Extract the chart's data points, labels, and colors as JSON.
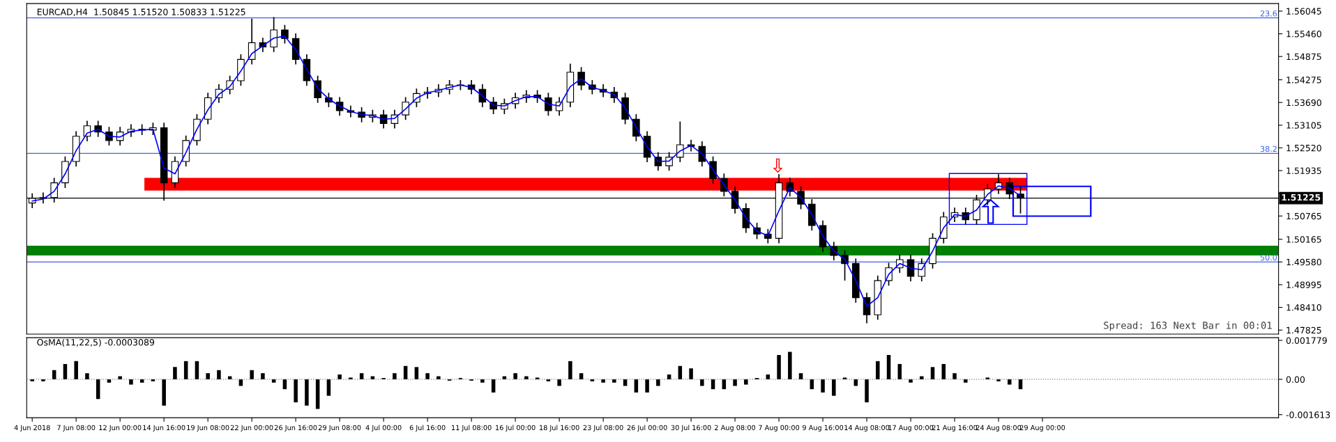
{
  "chart_data": [
    {
      "type": "candlestick",
      "title": "EURCAD,H4  1.50845 1.51520 1.50833 1.51225",
      "tick_labels": "y",
      "grid": false,
      "legend": false,
      "categories": [
        null,
        null,
        null,
        null,
        null,
        null,
        null,
        null,
        null,
        null,
        null,
        null,
        null,
        null,
        null,
        null,
        null,
        null,
        null,
        null,
        null,
        null,
        null,
        null,
        null,
        null,
        null,
        null,
        null,
        null,
        null,
        null,
        null,
        null,
        null,
        null,
        null,
        null,
        null,
        null,
        null,
        null,
        null,
        null,
        null,
        null,
        null,
        null,
        null,
        null,
        null,
        null,
        null,
        null,
        null,
        null,
        null,
        null,
        null,
        null,
        null,
        null,
        null,
        null,
        null,
        null,
        null,
        null,
        null,
        null,
        null,
        null,
        null,
        null,
        null,
        null,
        null,
        null,
        null,
        null,
        null,
        null,
        null,
        null,
        null,
        null,
        null,
        null,
        null,
        null,
        null,
        null,
        null,
        null,
        null,
        null,
        null,
        null,
        null,
        null,
        null,
        null,
        null,
        null,
        null,
        null,
        null,
        null,
        null,
        null,
        null,
        null,
        null,
        null
      ],
      "ohlc": [
        [
          1.511,
          1.5135,
          1.5097,
          1.5122
        ],
        [
          1.5122,
          1.5137,
          1.5109,
          1.5124
        ],
        [
          1.5124,
          1.5175,
          1.5111,
          1.5162
        ],
        [
          1.5162,
          1.523,
          1.5149,
          1.5217
        ],
        [
          1.5217,
          1.5295,
          1.5204,
          1.5282
        ],
        [
          1.5282,
          1.5322,
          1.5269,
          1.5309
        ],
        [
          1.5309,
          1.5322,
          1.528,
          1.5293
        ],
        [
          1.5293,
          1.5306,
          1.5258,
          1.5271
        ],
        [
          1.5271,
          1.5306,
          1.5258,
          1.5293
        ],
        [
          1.5293,
          1.5313,
          1.528,
          1.53
        ],
        [
          1.53,
          1.5313,
          1.5285,
          1.5298
        ],
        [
          1.5298,
          1.5317,
          1.5285,
          1.5304
        ],
        [
          1.5304,
          1.5317,
          1.5116,
          1.5162
        ],
        [
          1.5162,
          1.523,
          1.5149,
          1.5217
        ],
        [
          1.5217,
          1.5284,
          1.5204,
          1.5271
        ],
        [
          1.5271,
          1.5339,
          1.5258,
          1.5326
        ],
        [
          1.5326,
          1.5394,
          1.5313,
          1.5381
        ],
        [
          1.5381,
          1.5416,
          1.5368,
          1.5403
        ],
        [
          1.5403,
          1.5438,
          1.539,
          1.5425
        ],
        [
          1.5425,
          1.5493,
          1.5412,
          1.548
        ],
        [
          1.548,
          1.5585,
          1.5467,
          1.5523
        ],
        [
          1.5523,
          1.5536,
          1.5499,
          1.5512
        ],
        [
          1.5512,
          1.5589,
          1.5499,
          1.5556
        ],
        [
          1.5556,
          1.5569,
          1.5521,
          1.5534
        ],
        [
          1.5534,
          1.5547,
          1.5467,
          1.548
        ],
        [
          1.548,
          1.5493,
          1.5412,
          1.5425
        ],
        [
          1.5425,
          1.5438,
          1.5368,
          1.5381
        ],
        [
          1.5381,
          1.5394,
          1.5357,
          1.537
        ],
        [
          1.537,
          1.5383,
          1.5335,
          1.5348
        ],
        [
          1.5348,
          1.5361,
          1.5331,
          1.5344
        ],
        [
          1.5344,
          1.5357,
          1.5318,
          1.5331
        ],
        [
          1.5331,
          1.535,
          1.5318,
          1.5337
        ],
        [
          1.5337,
          1.535,
          1.5302,
          1.5315
        ],
        [
          1.5315,
          1.535,
          1.5302,
          1.5337
        ],
        [
          1.5337,
          1.5383,
          1.5324,
          1.537
        ],
        [
          1.537,
          1.5405,
          1.5357,
          1.5392
        ],
        [
          1.5392,
          1.5409,
          1.5379,
          1.5396
        ],
        [
          1.5396,
          1.5416,
          1.5383,
          1.5403
        ],
        [
          1.5403,
          1.5427,
          1.539,
          1.5414
        ],
        [
          1.5414,
          1.5427,
          1.5401,
          1.5414
        ],
        [
          1.5414,
          1.5427,
          1.539,
          1.5403
        ],
        [
          1.5403,
          1.5416,
          1.5357,
          1.537
        ],
        [
          1.537,
          1.5383,
          1.5339,
          1.5352
        ],
        [
          1.5352,
          1.5379,
          1.5339,
          1.5366
        ],
        [
          1.5366,
          1.5394,
          1.5353,
          1.5381
        ],
        [
          1.5381,
          1.5401,
          1.5368,
          1.5388
        ],
        [
          1.5388,
          1.5401,
          1.5368,
          1.5381
        ],
        [
          1.5381,
          1.5394,
          1.5335,
          1.5348
        ],
        [
          1.5348,
          1.5383,
          1.5335,
          1.537
        ],
        [
          1.537,
          1.5469,
          1.5357,
          1.5447
        ],
        [
          1.5447,
          1.546,
          1.5401,
          1.5414
        ],
        [
          1.5414,
          1.5427,
          1.539,
          1.5403
        ],
        [
          1.5403,
          1.5416,
          1.5383,
          1.5396
        ],
        [
          1.5396,
          1.5409,
          1.5368,
          1.5381
        ],
        [
          1.5381,
          1.5394,
          1.5313,
          1.5326
        ],
        [
          1.5326,
          1.5339,
          1.5269,
          1.5282
        ],
        [
          1.5282,
          1.5295,
          1.5215,
          1.5228
        ],
        [
          1.5228,
          1.5241,
          1.5193,
          1.5206
        ],
        [
          1.5206,
          1.5241,
          1.5193,
          1.5228
        ],
        [
          1.5228,
          1.532,
          1.5215,
          1.526
        ],
        [
          1.526,
          1.5273,
          1.5243,
          1.5256
        ],
        [
          1.5256,
          1.5269,
          1.5204,
          1.5217
        ],
        [
          1.5217,
          1.523,
          1.516,
          1.5173
        ],
        [
          1.5173,
          1.5186,
          1.5127,
          1.514
        ],
        [
          1.514,
          1.5153,
          1.5083,
          1.5096
        ],
        [
          1.5096,
          1.5109,
          1.5033,
          1.5046
        ],
        [
          1.5046,
          1.5059,
          1.5017,
          1.503
        ],
        [
          1.503,
          1.5043,
          1.5006,
          1.5019
        ],
        [
          1.5019,
          1.5184,
          1.5006,
          1.5162
        ],
        [
          1.5162,
          1.5175,
          1.5127,
          1.514
        ],
        [
          1.514,
          1.5153,
          1.5094,
          1.5107
        ],
        [
          1.5107,
          1.512,
          1.5039,
          1.5052
        ],
        [
          1.5052,
          1.5065,
          1.4984,
          1.4997
        ],
        [
          1.4997,
          1.501,
          1.4962,
          1.4975
        ],
        [
          1.4975,
          1.4988,
          1.491,
          1.4954
        ],
        [
          1.4954,
          1.4967,
          1.4853,
          1.4866
        ],
        [
          1.4866,
          1.4879,
          1.48,
          1.4822
        ],
        [
          1.4822,
          1.4923,
          1.4809,
          1.491
        ],
        [
          1.491,
          1.4956,
          1.4897,
          1.4943
        ],
        [
          1.4943,
          1.4977,
          1.493,
          1.4964
        ],
        [
          1.4964,
          1.4977,
          1.4908,
          1.4921
        ],
        [
          1.4921,
          1.4967,
          1.4908,
          1.4954
        ],
        [
          1.4954,
          1.5032,
          1.4941,
          1.5019
        ],
        [
          1.5019,
          1.5087,
          1.5006,
          1.5074
        ],
        [
          1.5074,
          1.5098,
          1.5061,
          1.5085
        ],
        [
          1.5085,
          1.5098,
          1.5054,
          1.5067
        ],
        [
          1.5067,
          1.5131,
          1.5054,
          1.5118
        ],
        [
          1.5118,
          1.5159,
          1.5105,
          1.5146
        ],
        [
          1.5146,
          1.5184,
          1.5133,
          1.5162
        ],
        [
          1.5162,
          1.5175,
          1.512,
          1.5133
        ],
        [
          1.5133,
          1.5152,
          1.5083,
          1.51225
        ],
        null,
        null,
        null,
        null,
        null,
        null,
        null,
        null,
        null,
        null,
        null,
        null,
        null,
        null,
        null,
        null,
        null,
        null,
        null,
        null,
        null,
        null,
        null
      ],
      "series": [
        {
          "type": "line",
          "color": "#0000ff",
          "values": [
            1.5115,
            1.512,
            1.514,
            1.5185,
            1.5245,
            1.529,
            1.53,
            1.5282,
            1.528,
            1.5295,
            1.5298,
            1.53,
            1.52,
            1.5185,
            1.524,
            1.53,
            1.535,
            1.539,
            1.541,
            1.545,
            1.5495,
            1.5515,
            1.5535,
            1.554,
            1.5505,
            1.5455,
            1.5405,
            1.5378,
            1.536,
            1.5346,
            1.5338,
            1.5335,
            1.5326,
            1.5328,
            1.5352,
            1.538,
            1.5394,
            1.54,
            1.5408,
            1.5414,
            1.5408,
            1.5386,
            1.5362,
            1.536,
            1.5374,
            1.5384,
            1.5384,
            1.5365,
            1.536,
            1.541,
            1.543,
            1.5408,
            1.54,
            1.5389,
            1.5355,
            1.5305,
            1.5255,
            1.5217,
            1.5218,
            1.5244,
            1.5258,
            1.5237,
            1.5195,
            1.5157,
            1.5118,
            1.5071,
            1.5038,
            1.5025,
            1.509,
            1.515,
            1.5124,
            1.508,
            1.5025,
            1.4986,
            1.4965,
            1.491,
            1.4844,
            1.4866,
            1.4926,
            1.4954,
            1.4942,
            1.4938,
            1.4986,
            1.5046,
            1.508,
            1.5076,
            1.5092,
            1.5132,
            1.5154,
            1.5148,
            1.5128,
            null,
            null,
            null,
            null,
            null,
            null,
            null,
            null,
            null,
            null,
            null,
            null,
            null,
            null,
            null,
            null,
            null,
            null,
            null,
            null,
            null,
            null,
            null
          ]
        }
      ],
      "ylim": [
        1.4772,
        1.5624
      ],
      "yticks": [
        {
          "value": 1.56045,
          "label": "1.56045"
        },
        {
          "value": 1.5546,
          "label": "1.55460"
        },
        {
          "value": 1.54875,
          "label": "1.54875"
        },
        {
          "value": 1.54275,
          "label": "1.54275"
        },
        {
          "value": 1.5369,
          "label": "1.53690"
        },
        {
          "value": 1.53105,
          "label": "1.53105"
        },
        {
          "value": 1.5252,
          "label": "1.52520"
        },
        {
          "value": 1.51935,
          "label": "1.51935"
        },
        {
          "value": 1.5135,
          "label": null
        },
        {
          "value": 1.50765,
          "label": "1.50765"
        },
        {
          "value": 1.50165,
          "label": "1.50165"
        },
        {
          "value": 1.4958,
          "label": "1.49580"
        },
        {
          "value": 1.48995,
          "label": "1.48995"
        },
        {
          "value": 1.4841,
          "label": "1.48410"
        },
        {
          "value": 1.47825,
          "label": "1.47825"
        }
      ],
      "ref_lines": [
        {
          "axis": "y",
          "value": 1.5587,
          "color": "#3c64e6"
        },
        {
          "axis": "y",
          "value": 1.5238,
          "color": "#3c64e6"
        },
        {
          "axis": "y",
          "value": 1.4958,
          "color": "#3c64e6"
        },
        {
          "axis": "y",
          "value": 1.51225,
          "label": "1.51225",
          "color": "#000000"
        }
      ],
      "bands": [
        {
          "axis": "y",
          "from": 1.5142,
          "to": 1.5175,
          "color": "#ff0000"
        },
        {
          "axis": "y",
          "from": 1.4975,
          "to": 1.5,
          "color": "#008000"
        }
      ],
      "annotations": [
        {
          "text": "23.6",
          "y": 1.5587
        },
        {
          "text": "38.2",
          "y": 1.5238
        },
        {
          "text": "50.0",
          "y": 1.4958
        },
        "Spread: 163 Next Bar in 00:01"
      ]
    },
    {
      "type": "bar",
      "title": "OsMA(11,22,5) -0.0003089",
      "color": "#000000",
      "grid": false,
      "legend": false,
      "categories": [
        "4 Jun 2018",
        null,
        null,
        null,
        "7 Jun 08:00",
        null,
        null,
        null,
        "12 Jun 00:00",
        null,
        null,
        null,
        "14 Jun 16:00",
        null,
        null,
        null,
        "19 Jun 08:00",
        null,
        null,
        null,
        "22 Jun 00:00",
        null,
        null,
        null,
        "26 Jun 16:00",
        null,
        null,
        null,
        "29 Jun 08:00",
        null,
        null,
        null,
        "4 Jul 00:00",
        null,
        null,
        null,
        "6 Jul 16:00",
        null,
        null,
        null,
        "11 Jul 08:00",
        null,
        null,
        null,
        "16 Jul 00:00",
        null,
        null,
        null,
        "18 Jul 16:00",
        null,
        null,
        null,
        "23 Jul 08:00",
        null,
        null,
        null,
        "26 Jul 00:00",
        null,
        null,
        null,
        "30 Jul 16:00",
        null,
        null,
        null,
        "2 Aug 08:00",
        null,
        null,
        null,
        "7 Aug 00:00",
        null,
        null,
        null,
        "9 Aug 16:00",
        null,
        null,
        null,
        "14 Aug 08:00",
        null,
        null,
        null,
        "17 Aug 00:00",
        null,
        null,
        null,
        "21 Aug 16:00",
        null,
        null,
        null,
        "24 Aug 08:00",
        null,
        null,
        null,
        "29 Aug 00:00",
        null,
        null,
        null,
        null,
        null,
        null,
        null,
        null,
        null,
        null,
        null,
        null,
        null,
        null,
        null,
        null,
        null,
        null,
        null,
        null,
        null
      ],
      "values": [
        -9e-05,
        -9e-05,
        0.00042,
        0.0007,
        0.00083,
        0.00028,
        -0.0009,
        -0.00015,
        0.00014,
        -0.00024,
        -0.00015,
        -9e-05,
        -0.0012,
        0.00056,
        0.00083,
        0.00083,
        0.00028,
        0.00042,
        0.00014,
        -0.0003,
        0.00042,
        0.00028,
        -0.00015,
        -0.00045,
        -0.00105,
        -0.0012,
        -0.00135,
        -0.00075,
        0.00022,
        8e-05,
        0.00028,
        0.00014,
        6e-05,
        0.00028,
        0.00061,
        0.00056,
        0.00028,
        0.00014,
        -6e-05,
        6e-05,
        -6e-05,
        -0.00015,
        -0.0006,
        0.00014,
        0.00028,
        0.00014,
        8e-05,
        -9e-05,
        -0.0003,
        0.00083,
        0.00028,
        -9e-05,
        -0.00015,
        -0.00015,
        -0.0003,
        -0.0006,
        -0.0006,
        -0.0003,
        0.00022,
        0.00061,
        0.0005,
        -0.0003,
        -0.00045,
        -0.00045,
        -0.0003,
        -0.00024,
        6e-05,
        0.00022,
        0.00111,
        0.00125,
        0.00028,
        -0.00045,
        -0.0006,
        -0.00075,
        8e-05,
        -0.0003,
        -0.00105,
        0.00083,
        0.00111,
        0.0007,
        -0.00015,
        0.00014,
        0.00056,
        0.0007,
        0.00028,
        -0.00015,
        0,
        8e-05,
        -9e-05,
        -0.00024,
        -0.00045,
        null,
        null,
        null,
        null,
        null,
        null,
        null,
        null,
        null,
        null,
        null,
        null,
        null,
        null,
        null,
        null,
        null,
        null,
        null,
        null,
        null,
        null,
        null
      ],
      "ylim": [
        -0.00175,
        0.0019
      ],
      "yticks": [
        0.001779,
        {
          "value": 0,
          "label": "0.00"
        },
        -0.001613
      ],
      "ref_lines": [
        {
          "axis": "y",
          "value": 0,
          "color": "#808080",
          "line_style": "dotted"
        }
      ]
    }
  ]
}
